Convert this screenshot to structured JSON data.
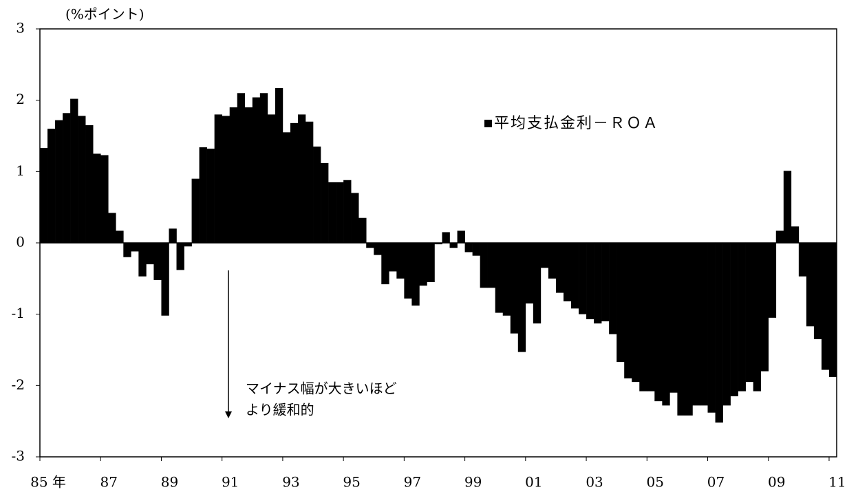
{
  "chart_data": {
    "type": "bar",
    "y_unit_label": "(%ポイント)",
    "annotations": [
      "マイナス幅が大きいほど",
      "より緩和的"
    ],
    "legend_position": "upper right",
    "x": [
      1985,
      1985.25,
      1985.5,
      1985.75,
      1986,
      1986.25,
      1986.5,
      1986.75,
      1987,
      1987.25,
      1987.5,
      1987.75,
      1988,
      1988.25,
      1988.5,
      1988.75,
      1989,
      1989.25,
      1989.5,
      1989.75,
      1990,
      1990.25,
      1990.5,
      1990.75,
      1991,
      1991.25,
      1991.5,
      1991.75,
      1992,
      1992.25,
      1992.5,
      1992.75,
      1993,
      1993.25,
      1993.5,
      1993.75,
      1994,
      1994.25,
      1994.5,
      1994.75,
      1995,
      1995.25,
      1995.5,
      1995.75,
      1996,
      1996.25,
      1996.5,
      1996.75,
      1997,
      1997.25,
      1997.5,
      1997.75,
      1998,
      1998.25,
      1998.5,
      1998.75,
      1999,
      1999.25,
      1999.5,
      1999.75,
      2000,
      2000.25,
      2000.5,
      2000.75,
      2001,
      2001.25,
      2001.5,
      2001.75,
      2002,
      2002.25,
      2002.5,
      2002.75,
      2003,
      2003.25,
      2003.5,
      2003.75,
      2004,
      2004.25,
      2004.5,
      2004.75,
      2005,
      2005.25,
      2005.5,
      2005.75,
      2006,
      2006.25,
      2006.5,
      2006.75,
      2007,
      2007.25,
      2007.5,
      2007.75,
      2008,
      2008.25,
      2008.5,
      2008.75,
      2009,
      2009.25,
      2009.5,
      2009.75,
      2010,
      2010.25,
      2010.5,
      2010.75,
      2011
    ],
    "series": [
      {
        "name": "平均支払金利－ＲＯＡ",
        "color": "#000000",
        "values": [
          1.33,
          1.6,
          1.72,
          1.82,
          2.02,
          1.78,
          1.65,
          1.25,
          1.23,
          0.42,
          0.17,
          -0.2,
          -0.12,
          -0.47,
          -0.3,
          -0.52,
          -1.02,
          0.2,
          -0.38,
          -0.05,
          0.9,
          1.34,
          1.32,
          1.8,
          1.78,
          1.9,
          2.1,
          1.9,
          2.04,
          2.1,
          1.8,
          2.17,
          1.55,
          1.68,
          1.8,
          1.7,
          1.35,
          1.12,
          0.85,
          0.85,
          0.88,
          0.7,
          0.35,
          -0.07,
          -0.17,
          -0.58,
          -0.4,
          -0.5,
          -0.78,
          -0.88,
          -0.6,
          -0.55,
          -0.02,
          0.15,
          -0.07,
          0.17,
          -0.13,
          -0.18,
          -0.63,
          -0.63,
          -0.98,
          -1.02,
          -1.27,
          -1.53,
          -0.85,
          -1.13,
          -0.35,
          -0.5,
          -0.7,
          -0.82,
          -0.92,
          -1.0,
          -1.07,
          -1.13,
          -1.1,
          -1.28,
          -1.67,
          -1.9,
          -1.95,
          -2.08,
          -2.08,
          -2.22,
          -2.28,
          -2.1,
          -2.42,
          -2.42,
          -2.28,
          -2.28,
          -2.38,
          -2.52,
          -2.28,
          -2.15,
          -2.08,
          -1.95,
          -2.08,
          -1.8,
          -1.05,
          0.17,
          1.01,
          0.23,
          -0.47,
          -1.17,
          -1.35,
          -1.78,
          -1.88
        ]
      }
    ],
    "xlim": [
      1985,
      2011.25
    ],
    "xticks": [
      {
        "value": 1985,
        "label": "85 年"
      },
      {
        "value": 1987,
        "label": "87"
      },
      {
        "value": 1989,
        "label": "89"
      },
      {
        "value": 1991,
        "label": "91"
      },
      {
        "value": 1993,
        "label": "93"
      },
      {
        "value": 1995,
        "label": "95"
      },
      {
        "value": 1997,
        "label": "97"
      },
      {
        "value": 1999,
        "label": "99"
      },
      {
        "value": 2001,
        "label": "01"
      },
      {
        "value": 2003,
        "label": "03"
      },
      {
        "value": 2005,
        "label": "05"
      },
      {
        "value": 2007,
        "label": "07"
      },
      {
        "value": 2009,
        "label": "09"
      },
      {
        "value": 2011,
        "label": "11"
      }
    ],
    "ylim": [
      -3,
      3
    ],
    "yticks": [
      -3,
      -2,
      -1,
      0,
      1,
      2,
      3
    ],
    "grid": false
  }
}
